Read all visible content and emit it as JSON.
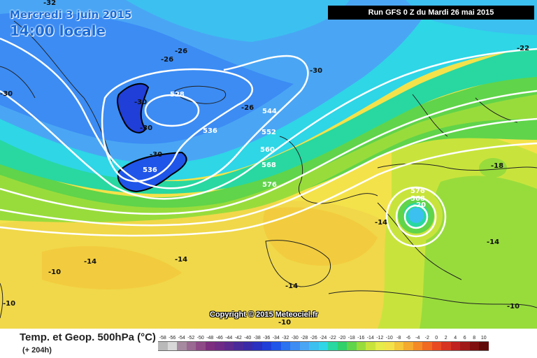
{
  "map": {
    "date_line": "Mercredi 3 juin 2015",
    "time_line": "14:00 locale",
    "run_info": "Run GFS 0 Z du Mardi 26 mai 2015",
    "copyright": "Copyright © 2015 Meteociel.fr",
    "product_title": "Temp. et Geop. 500hPa (°C)",
    "lead_time": "(+ 204h)",
    "temperature_labels": [
      "-32",
      "-26",
      "-26",
      "-30",
      "-30",
      "-30",
      "-26",
      "-30",
      "-22",
      "-18",
      "-14",
      "-14",
      "-14",
      "-10",
      "-10",
      "-14",
      "-10",
      "-10",
      "-30",
      "-14",
      "-20"
    ],
    "geopotential_labels": [
      "528",
      "536",
      "544",
      "552",
      "560",
      "568",
      "576",
      "536",
      "576",
      "568"
    ],
    "legend": {
      "ticks": [
        "-58",
        "-56",
        "-54",
        "-52",
        "-50",
        "-48",
        "-46",
        "-44",
        "-42",
        "-40",
        "-38",
        "-36",
        "-34",
        "-32",
        "-30",
        "-28",
        "-26",
        "-24",
        "-22",
        "-20",
        "-18",
        "-16",
        "-14",
        "-12",
        "-10",
        "-8",
        "-6",
        "-4",
        "-2",
        "0",
        "2",
        "4",
        "6",
        "8",
        "10"
      ],
      "colors": [
        "#b9b9b9",
        "#d8d8d8",
        "#a68aa0",
        "#9a6a92",
        "#8e4a86",
        "#7e2e7e",
        "#702b86",
        "#5e2a8e",
        "#4a2a9a",
        "#3a2aa8",
        "#2a30c0",
        "#1f3fd8",
        "#1f55e8",
        "#2a72f0",
        "#3c8cf4",
        "#4aa6f4",
        "#3cc0f0",
        "#2ed6e6",
        "#28d8a0",
        "#30d06a",
        "#60d44a",
        "#98dc3c",
        "#c8e43c",
        "#e6ec4a",
        "#f4e24a",
        "#f4c83a",
        "#f4aa2e",
        "#f48a26",
        "#f06a22",
        "#ea4a22",
        "#d83422",
        "#c02222",
        "#a01818",
        "#800e0e",
        "#600808"
      ]
    },
    "colors": {
      "ocean_cold": "#3cc0f0",
      "ocean_mid": "#2ed6e6",
      "warm": "#f4e24a",
      "land_border": "#222222",
      "isohypse": "#ffffff"
    }
  }
}
